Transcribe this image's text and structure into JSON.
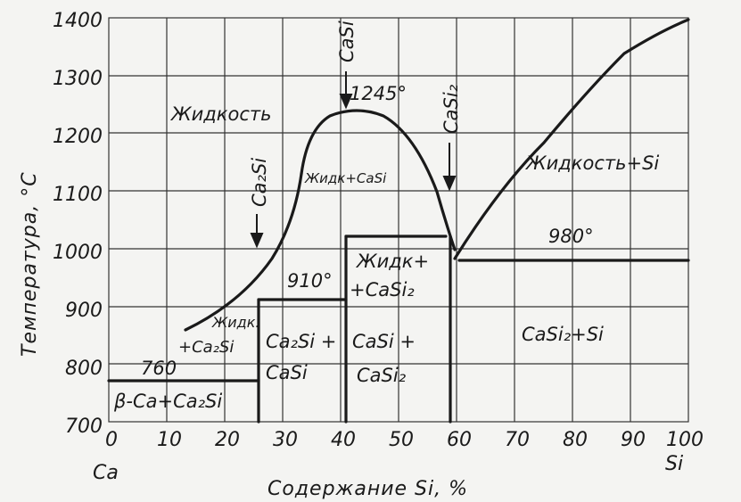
{
  "diagram": {
    "x_axis": {
      "title": "Содержание Si, %",
      "ticks": [
        "0",
        "10",
        "20",
        "30",
        "40",
        "50",
        "60",
        "70",
        "80",
        "90",
        "100"
      ],
      "left_end": "Ca",
      "right_end": "Si"
    },
    "y_axis": {
      "title": "Температура, °С",
      "ticks": [
        "700",
        "800",
        "900",
        "1000",
        "1100",
        "1200",
        "1300",
        "1400"
      ]
    },
    "regions": {
      "liquid": "Жидкость",
      "liquid_casi": "Жидк+CaSi",
      "liquid_si": "Жидкость+Si",
      "liquid_casi2_1": "Жидк+",
      "liquid_casi2_2": "+CaSi₂",
      "liquid_ca2si_1": "Жидк.",
      "liquid_ca2si_2": "+Ca₂Si",
      "ca2si_casi_1": "Ca₂Si +",
      "ca2si_casi_2": "CaSi",
      "casi_casi2_1": "CaSi +",
      "casi_casi2_2": "CaSi₂",
      "casi2_si": "CaSi₂+Si",
      "beta_ca_ca2si": "β-Ca+Ca₂Si"
    },
    "compounds": {
      "casi": "CaSi",
      "casi2": "CaSi₂",
      "ca2si": "Ca₂Si"
    },
    "temperatures": {
      "t1245": "1245°",
      "t980": "980°",
      "t910": "910°",
      "t760": "760"
    }
  }
}
